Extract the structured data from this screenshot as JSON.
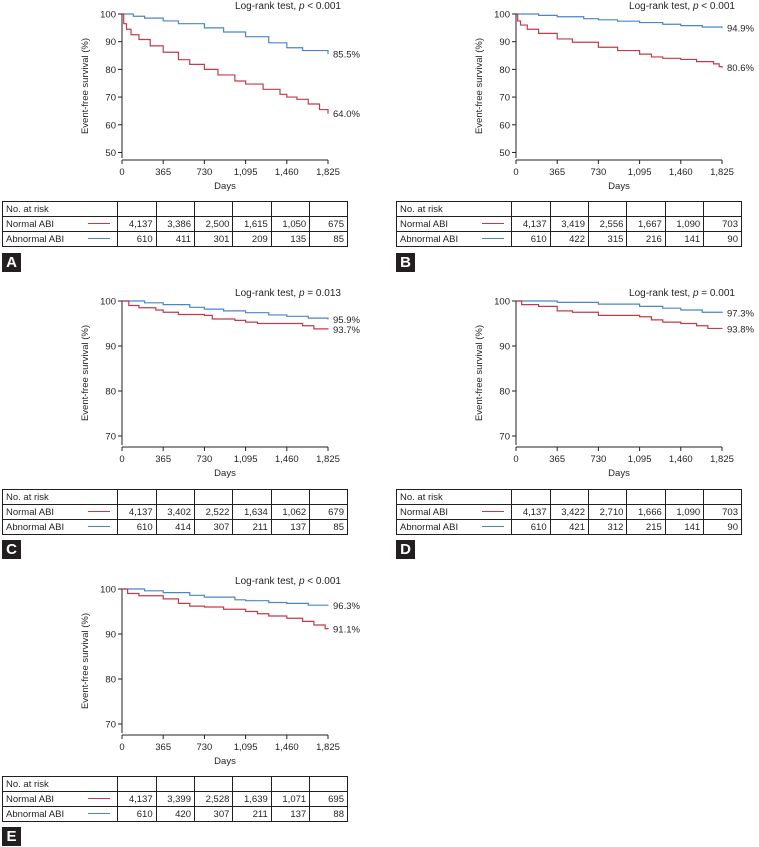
{
  "colors": {
    "normal": "#c23b4a",
    "abnormal": "#4a86c5",
    "text": "#231f20"
  },
  "risk_labels": {
    "header": "No. at risk",
    "normal": "Normal ABI",
    "abnormal": "Abnormal ABI"
  },
  "panels": [
    {
      "letter": "A",
      "risk": {
        "normal": [
          "4,137",
          "3,386",
          "2,500",
          "1,615",
          "1,050",
          "675"
        ],
        "abnormal": [
          "610",
          "411",
          "301",
          "209",
          "135",
          "85"
        ]
      }
    },
    {
      "letter": "B",
      "risk": {
        "normal": [
          "4,137",
          "3,419",
          "2,556",
          "1,667",
          "1,090",
          "703"
        ],
        "abnormal": [
          "610",
          "422",
          "315",
          "216",
          "141",
          "90"
        ]
      }
    },
    {
      "letter": "C",
      "risk": {
        "normal": [
          "4,137",
          "3,402",
          "2,522",
          "1,634",
          "1,062",
          "679"
        ],
        "abnormal": [
          "610",
          "414",
          "307",
          "211",
          "137",
          "85"
        ]
      }
    },
    {
      "letter": "D",
      "risk": {
        "normal": [
          "4,137",
          "3,422",
          "2,710",
          "1,666",
          "1,090",
          "703"
        ],
        "abnormal": [
          "610",
          "421",
          "312",
          "215",
          "141",
          "90"
        ]
      }
    },
    {
      "letter": "E",
      "risk": {
        "normal": [
          "4,137",
          "3,399",
          "2,528",
          "1,639",
          "1,071",
          "695"
        ],
        "abnormal": [
          "610",
          "420",
          "307",
          "211",
          "137",
          "88"
        ]
      }
    }
  ],
  "chart_data": [
    {
      "panel": "A",
      "type": "line",
      "title_prefix": "Log-rank test, ",
      "title_p": "p",
      "title_suffix": " < 0.001",
      "xlabel": "Days",
      "ylabel": "Event-free survival (%)",
      "xlim": [
        0,
        1825
      ],
      "ylim": [
        48,
        100
      ],
      "xticks": [
        0,
        365,
        730,
        1095,
        1460,
        1825
      ],
      "xticklabels": [
        "0",
        "365",
        "730",
        "1,095",
        "1,460",
        "1,825"
      ],
      "yticks": [
        50,
        60,
        70,
        80,
        90,
        100
      ],
      "yticklabels": [
        "50",
        "60",
        "70",
        "80",
        "90",
        "100"
      ],
      "series": [
        {
          "name": "Abnormal ABI",
          "end_label": "85.5%",
          "x": [
            0,
            100,
            200,
            365,
            500,
            730,
            900,
            1095,
            1300,
            1460,
            1600,
            1825
          ],
          "y": [
            100,
            99.2,
            98.5,
            97.5,
            96.5,
            95.0,
            93.5,
            91.8,
            89.6,
            87.8,
            86.8,
            85.5
          ]
        },
        {
          "name": "Normal ABI",
          "end_label": "64.0%",
          "x": [
            0,
            15,
            40,
            80,
            150,
            250,
            365,
            500,
            600,
            730,
            850,
            1000,
            1095,
            1250,
            1400,
            1460,
            1550,
            1650,
            1750,
            1825
          ],
          "y": [
            100,
            96.5,
            94.5,
            92.5,
            90.8,
            88.5,
            86.2,
            83.5,
            81.8,
            80.0,
            78.0,
            75.8,
            74.7,
            72.8,
            71.0,
            70.0,
            69.2,
            67.5,
            65.5,
            64.0
          ]
        }
      ]
    },
    {
      "panel": "B",
      "type": "line",
      "title_prefix": "Log-rank test, ",
      "title_p": "p",
      "title_suffix": " < 0.001",
      "xlabel": "Days",
      "ylabel": "Event-free survival (%)",
      "xlim": [
        0,
        1825
      ],
      "ylim": [
        48,
        100
      ],
      "xticks": [
        0,
        365,
        730,
        1095,
        1460,
        1825
      ],
      "xticklabels": [
        "0",
        "365",
        "730",
        "1,095",
        "1,460",
        "1,825"
      ],
      "yticks": [
        50,
        60,
        70,
        80,
        90,
        100
      ],
      "yticklabels": [
        "50",
        "60",
        "70",
        "80",
        "90",
        "100"
      ],
      "series": [
        {
          "name": "Abnormal ABI",
          "end_label": "94.9%",
          "x": [
            0,
            200,
            365,
            600,
            730,
            900,
            1095,
            1300,
            1460,
            1650,
            1825
          ],
          "y": [
            100,
            99.5,
            99.0,
            98.3,
            97.9,
            97.4,
            96.9,
            96.3,
            95.8,
            95.3,
            94.9
          ]
        },
        {
          "name": "Normal ABI",
          "end_label": "80.6%",
          "x": [
            0,
            15,
            40,
            100,
            200,
            365,
            500,
            730,
            900,
            1095,
            1200,
            1300,
            1460,
            1600,
            1750,
            1800,
            1825
          ],
          "y": [
            100,
            97.5,
            96.0,
            94.5,
            93.0,
            91.0,
            89.8,
            88.0,
            86.8,
            85.5,
            84.5,
            84.0,
            83.6,
            82.8,
            82.0,
            81.0,
            80.6
          ]
        }
      ]
    },
    {
      "panel": "C",
      "type": "line",
      "title_prefix": "Log-rank test, ",
      "title_p": "p",
      "title_suffix": " = 0.013",
      "xlabel": "Days",
      "ylabel": "Event-free survival (%)",
      "xlim": [
        0,
        1825
      ],
      "ylim": [
        68,
        100
      ],
      "xticks": [
        0,
        365,
        730,
        1095,
        1460,
        1825
      ],
      "xticklabels": [
        "0",
        "365",
        "730",
        "1,095",
        "1,460",
        "1,825"
      ],
      "yticks": [
        70,
        80,
        90,
        100
      ],
      "yticklabels": [
        "70",
        "80",
        "90",
        "100"
      ],
      "series": [
        {
          "name": "Abnormal ABI",
          "end_label": "95.9%",
          "x": [
            0,
            200,
            365,
            600,
            730,
            900,
            1095,
            1300,
            1460,
            1650,
            1825
          ],
          "y": [
            100,
            99.6,
            99.2,
            98.6,
            98.2,
            97.8,
            97.4,
            96.9,
            96.6,
            96.2,
            95.9
          ]
        },
        {
          "name": "Normal ABI",
          "end_label": "93.7%",
          "x": [
            0,
            60,
            150,
            300,
            365,
            500,
            730,
            800,
            1000,
            1095,
            1200,
            1460,
            1600,
            1700,
            1825
          ],
          "y": [
            100,
            99.0,
            98.5,
            98.0,
            97.5,
            97.0,
            96.8,
            96.0,
            95.7,
            95.3,
            95.0,
            95.0,
            94.5,
            93.8,
            93.7
          ]
        }
      ]
    },
    {
      "panel": "D",
      "type": "line",
      "title_prefix": "Log-rank test, ",
      "title_p": "p",
      "title_suffix": " = 0.001",
      "xlabel": "Days",
      "ylabel": "Event-free survival (%)",
      "xlim": [
        0,
        1825
      ],
      "ylim": [
        68,
        100
      ],
      "xticks": [
        0,
        365,
        730,
        1095,
        1460,
        1825
      ],
      "xticklabels": [
        "0",
        "365",
        "730",
        "1,095",
        "1,460",
        "1,825"
      ],
      "yticks": [
        70,
        80,
        90,
        100
      ],
      "yticklabels": [
        "70",
        "80",
        "90",
        "100"
      ],
      "series": [
        {
          "name": "Abnormal ABI",
          "end_label": "97.3%",
          "x": [
            0,
            365,
            730,
            1095,
            1300,
            1460,
            1650,
            1825
          ],
          "y": [
            100,
            99.7,
            99.3,
            98.8,
            98.4,
            98.0,
            97.5,
            97.3
          ]
        },
        {
          "name": "Normal ABI",
          "end_label": "93.8%",
          "x": [
            0,
            50,
            200,
            365,
            500,
            730,
            900,
            1095,
            1200,
            1300,
            1460,
            1600,
            1700,
            1825
          ],
          "y": [
            100,
            99.2,
            98.8,
            97.8,
            97.5,
            96.8,
            96.8,
            96.5,
            95.8,
            95.3,
            95.0,
            94.5,
            93.9,
            93.8
          ]
        }
      ]
    },
    {
      "panel": "E",
      "type": "line",
      "title_prefix": "Log-rank test, ",
      "title_p": "p",
      "title_suffix": " < 0.001",
      "xlabel": "Days",
      "ylabel": "Event-free survival (%)",
      "xlim": [
        0,
        1825
      ],
      "ylim": [
        68,
        100
      ],
      "xticks": [
        0,
        365,
        730,
        1095,
        1460,
        1825
      ],
      "xticklabels": [
        "0",
        "365",
        "730",
        "1,095",
        "1,460",
        "1,825"
      ],
      "yticks": [
        70,
        80,
        90,
        100
      ],
      "yticklabels": [
        "70",
        "80",
        "90",
        "100"
      ],
      "series": [
        {
          "name": "Abnormal ABI",
          "end_label": "96.3%",
          "x": [
            0,
            200,
            365,
            600,
            730,
            1000,
            1095,
            1300,
            1460,
            1650,
            1825
          ],
          "y": [
            100,
            99.6,
            99.2,
            98.6,
            98.2,
            97.6,
            97.4,
            97.0,
            96.8,
            96.4,
            96.3
          ]
        },
        {
          "name": "Normal ABI",
          "end_label": "91.1%",
          "x": [
            0,
            50,
            150,
            365,
            500,
            600,
            730,
            900,
            1095,
            1200,
            1300,
            1460,
            1600,
            1700,
            1800,
            1825
          ],
          "y": [
            100,
            99.0,
            98.5,
            97.8,
            96.8,
            96.2,
            96.0,
            95.5,
            95.0,
            94.5,
            94.0,
            93.5,
            92.8,
            92.0,
            91.2,
            91.1
          ]
        }
      ]
    }
  ]
}
